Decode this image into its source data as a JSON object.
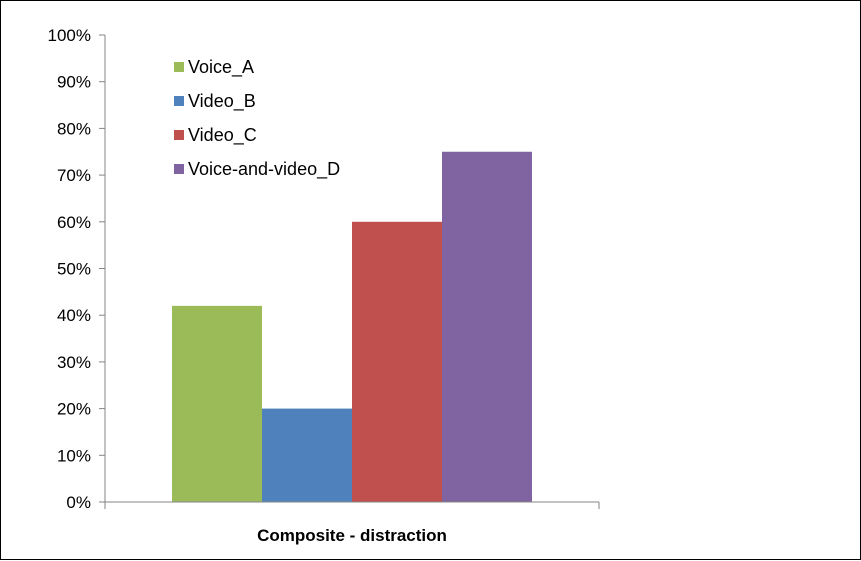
{
  "chart_data": {
    "type": "bar",
    "categories": [
      "Composite - distraction"
    ],
    "series": [
      {
        "name": "Voice_A",
        "values": [
          42
        ],
        "color": "#9BBB59"
      },
      {
        "name": "Video_B",
        "values": [
          20
        ],
        "color": "#4F81BD"
      },
      {
        "name": "Video_C",
        "values": [
          60
        ],
        "color": "#C0504D"
      },
      {
        "name": "Voice-and-video_D",
        "values": [
          75
        ],
        "color": "#8064A2"
      }
    ],
    "ylim": [
      0,
      100
    ],
    "yticks": [
      "0%",
      "10%",
      "20%",
      "30%",
      "40%",
      "50%",
      "60%",
      "70%",
      "80%",
      "90%",
      "100%"
    ],
    "ytick_values": [
      0,
      10,
      20,
      30,
      40,
      50,
      60,
      70,
      80,
      90,
      100
    ],
    "legend_position": "top-left",
    "grid": false
  }
}
